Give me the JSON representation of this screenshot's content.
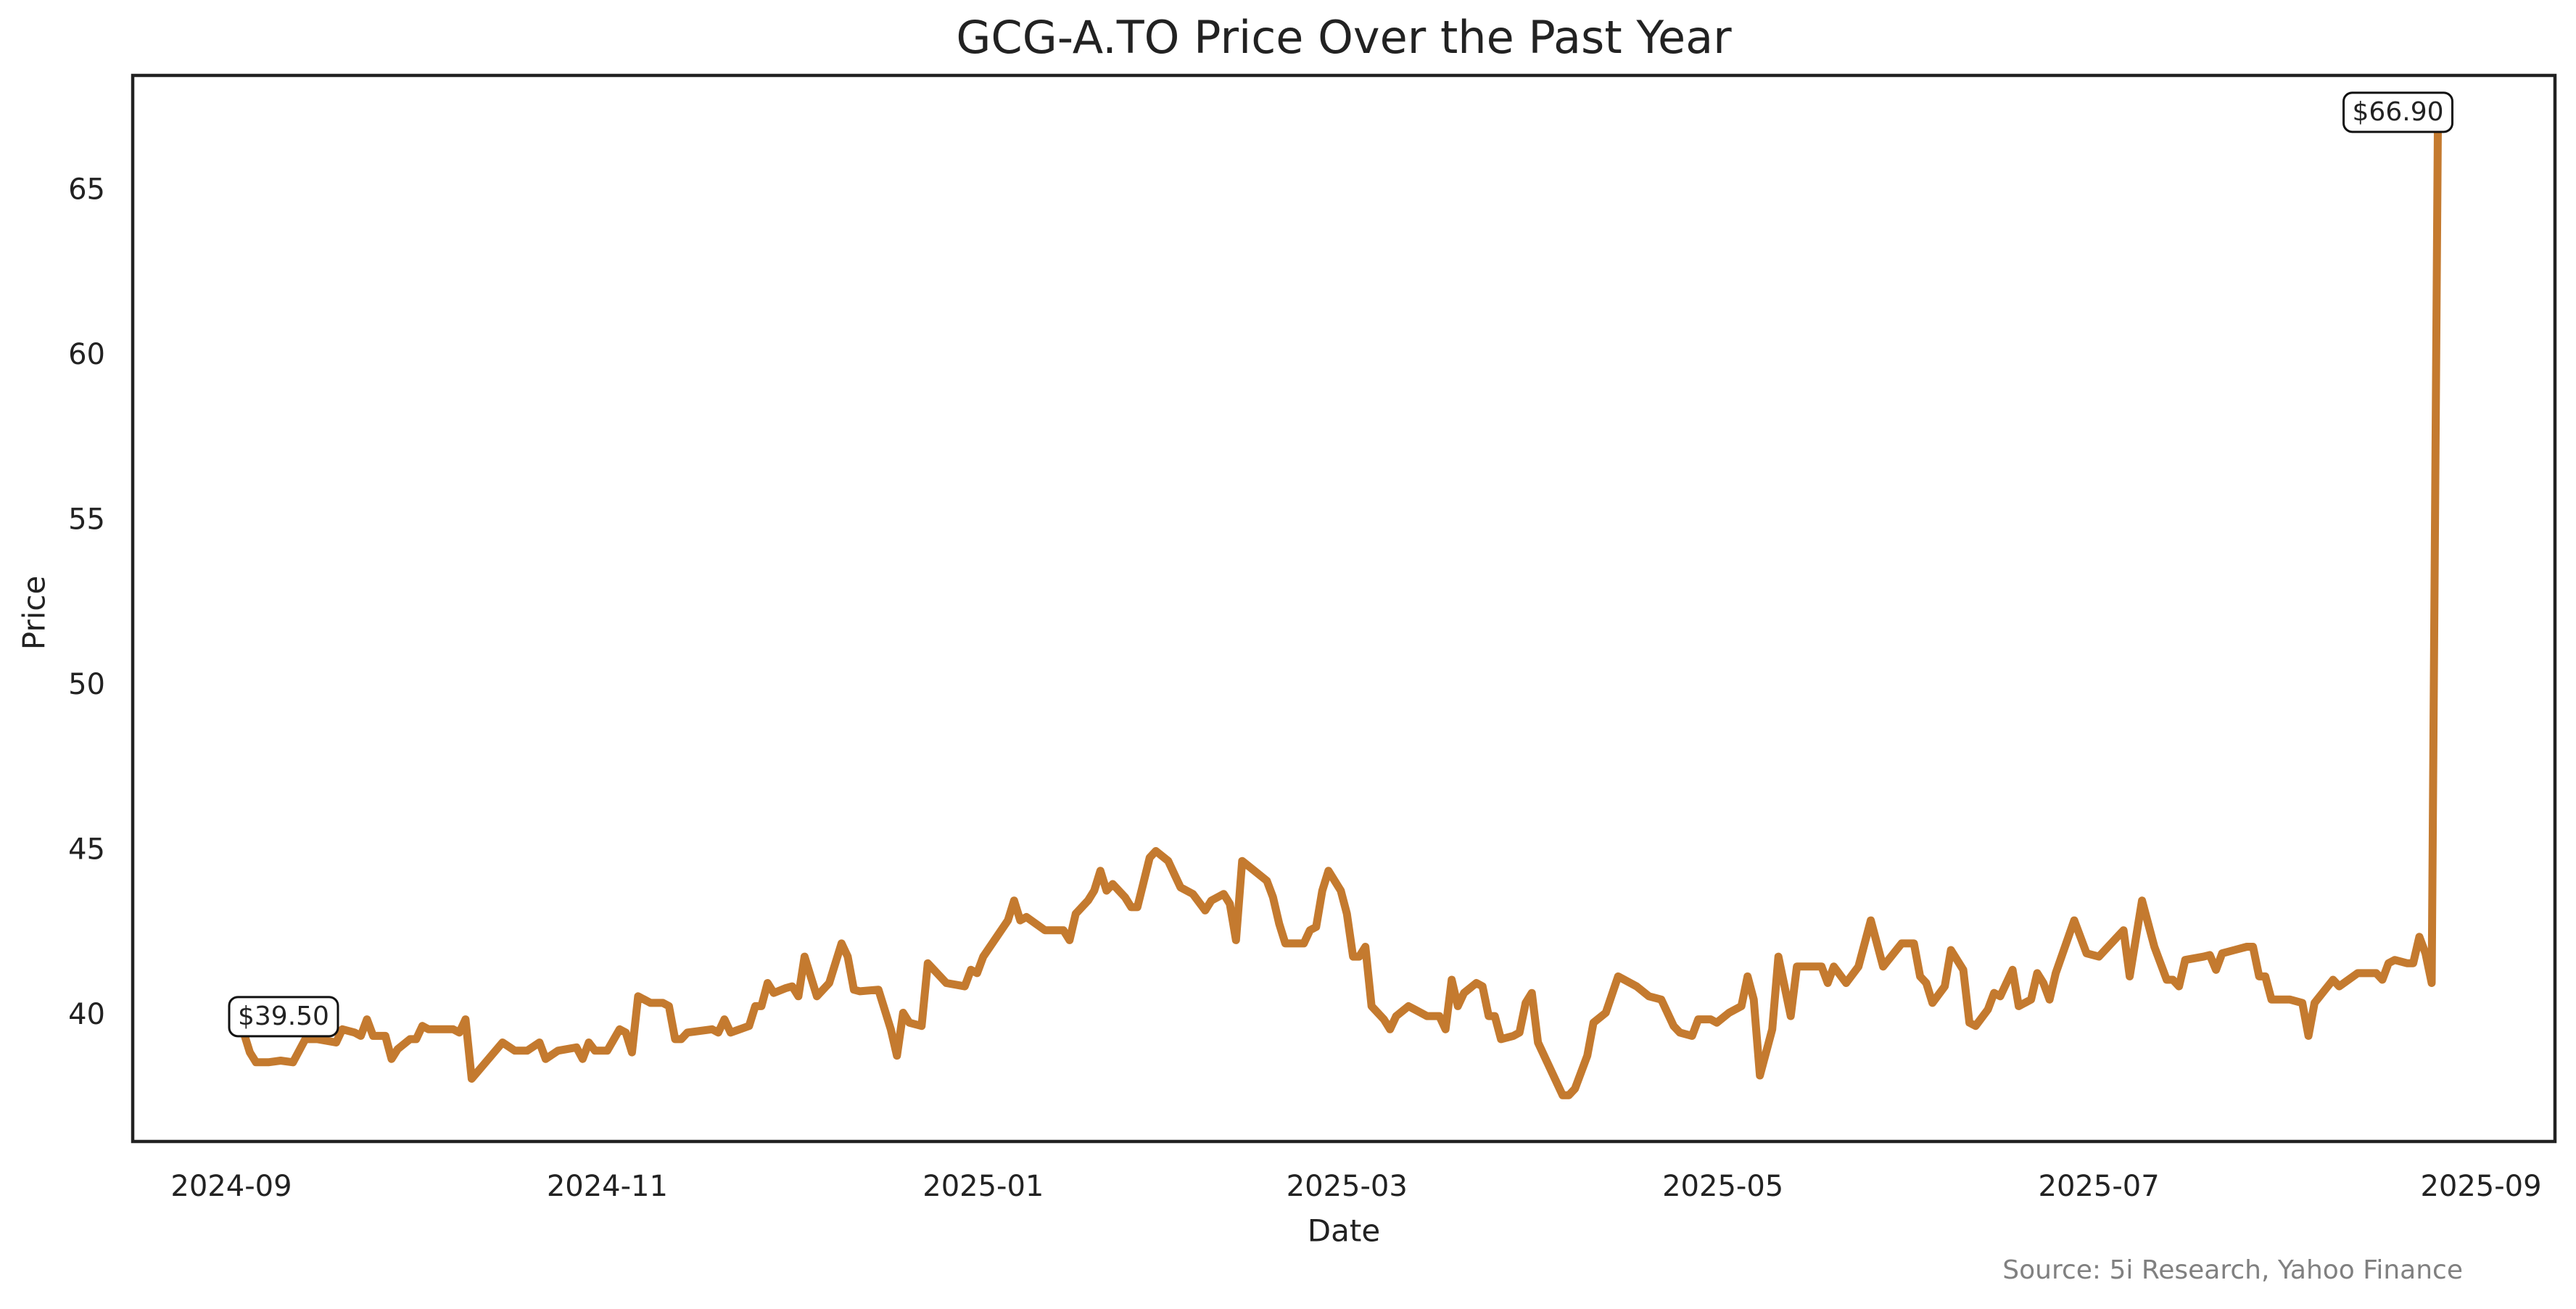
{
  "chart_data": {
    "type": "line",
    "title": "GCG-A.TO Price Over the Past Year",
    "x_label": "Date",
    "y_label": "Price",
    "source": "Source: 5i Research, Yahoo Finance",
    "start_label": "$39.50",
    "end_label": "$66.90",
    "xlim": [
      -16,
      377
    ],
    "xticks": [
      {
        "value": 0,
        "label": "2024-09"
      },
      {
        "value": 61,
        "label": "2024-11"
      },
      {
        "value": 122,
        "label": "2025-01"
      },
      {
        "value": 181,
        "label": "2025-03"
      },
      {
        "value": 242,
        "label": "2025-05"
      },
      {
        "value": 303,
        "label": "2025-07"
      },
      {
        "value": 365,
        "label": "2025-09"
      }
    ],
    "ylim": [
      36.2,
      68.5
    ],
    "yticks": [
      40,
      45,
      50,
      55,
      60,
      65
    ],
    "grid": false,
    "x": [
      2,
      3,
      4,
      6,
      8,
      10,
      12,
      14,
      17,
      18,
      20,
      21,
      22,
      23,
      25,
      26,
      27,
      29,
      30,
      31,
      32,
      36,
      37,
      38,
      39,
      44,
      46,
      48,
      50,
      51,
      53,
      56,
      57,
      58,
      59,
      61,
      63,
      64,
      65,
      66,
      68,
      70,
      71,
      72,
      73,
      74,
      78,
      79,
      80,
      81,
      84,
      85,
      86,
      87,
      88,
      90,
      91,
      92,
      93,
      95,
      97,
      99,
      100,
      101,
      102,
      105,
      107,
      108,
      109,
      110,
      112,
      113,
      115,
      116,
      119,
      120,
      121,
      122,
      126,
      127,
      128,
      129,
      132,
      135,
      136,
      137,
      139,
      140,
      141,
      142,
      143,
      145,
      146,
      147,
      149,
      150,
      152,
      153,
      154,
      156,
      158,
      159,
      161,
      162,
      163,
      164,
      166,
      168,
      169,
      170,
      171,
      174,
      175,
      176,
      177,
      178,
      180,
      181,
      182,
      183,
      184,
      185,
      187,
      188,
      189,
      191,
      192,
      194,
      196,
      197,
      198,
      199,
      200,
      202,
      203,
      204,
      205,
      206,
      208,
      209,
      210,
      211,
      212,
      214,
      216,
      217,
      218,
      220,
      221,
      223,
      225,
      228,
      230,
      232,
      234,
      235,
      237,
      238,
      240,
      241,
      243,
      245,
      246,
      247,
      248,
      250,
      251,
      253,
      254,
      257,
      258,
      259,
      260,
      262,
      264,
      266,
      268,
      271,
      273,
      274,
      275,
      276,
      278,
      279,
      281,
      282,
      283,
      285,
      286,
      287,
      289,
      290,
      292,
      293,
      294,
      295,
      296,
      299,
      301,
      303,
      306,
      307,
      308,
      310,
      312,
      314,
      315,
      316,
      317,
      320,
      321,
      322,
      323,
      325,
      327,
      328,
      329,
      330,
      331,
      334,
      336,
      337,
      338,
      341,
      342,
      345,
      346,
      348,
      349,
      350,
      351,
      353,
      354,
      355,
      356,
      357,
      358
    ],
    "series": [
      {
        "name": "GCG-A.TO",
        "color": "#c47a2f",
        "values": [
          39.5,
          38.9,
          38.6,
          38.6,
          38.65,
          38.6,
          39.3,
          39.3,
          39.2,
          39.6,
          39.5,
          39.4,
          39.9,
          39.4,
          39.4,
          38.7,
          39.0,
          39.3,
          39.3,
          39.7,
          39.6,
          39.6,
          39.5,
          39.9,
          38.1,
          39.2,
          38.95,
          38.95,
          39.2,
          38.7,
          38.95,
          39.05,
          38.7,
          39.2,
          38.95,
          38.95,
          39.6,
          39.5,
          38.9,
          40.6,
          40.4,
          40.4,
          40.3,
          39.3,
          39.3,
          39.5,
          39.6,
          39.5,
          39.9,
          39.5,
          39.7,
          40.3,
          40.3,
          41.0,
          40.7,
          40.85,
          40.9,
          40.6,
          41.8,
          40.6,
          41.0,
          42.2,
          41.8,
          40.8,
          40.75,
          40.8,
          39.6,
          38.8,
          40.1,
          39.8,
          39.7,
          41.6,
          41.2,
          41.0,
          40.9,
          41.4,
          41.3,
          41.8,
          42.9,
          43.5,
          42.9,
          43.0,
          42.6,
          42.6,
          42.3,
          43.1,
          43.5,
          43.8,
          44.4,
          43.8,
          44.0,
          43.6,
          43.3,
          43.3,
          44.8,
          45.0,
          44.7,
          44.3,
          43.9,
          43.7,
          43.2,
          43.5,
          43.7,
          43.4,
          42.3,
          44.7,
          44.4,
          44.1,
          43.6,
          42.8,
          42.2,
          42.2,
          42.6,
          42.7,
          43.8,
          44.4,
          43.8,
          43.1,
          41.8,
          41.8,
          42.1,
          40.3,
          39.9,
          39.6,
          40.0,
          40.3,
          40.2,
          40.0,
          40.0,
          39.6,
          41.1,
          40.3,
          40.7,
          41.0,
          40.9,
          40.0,
          40.0,
          39.3,
          39.4,
          39.5,
          40.4,
          40.7,
          39.2,
          38.4,
          37.6,
          37.6,
          37.8,
          38.8,
          39.8,
          40.1,
          41.2,
          40.9,
          40.6,
          40.5,
          39.7,
          39.5,
          39.4,
          39.9,
          39.9,
          39.8,
          40.1,
          40.3,
          41.2,
          40.5,
          38.2,
          39.6,
          41.8,
          40.0,
          41.5,
          41.5,
          41.5,
          41.0,
          41.5,
          41.0,
          41.5,
          42.9,
          41.5,
          42.2,
          42.2,
          41.2,
          41.0,
          40.4,
          40.9,
          42.0,
          41.4,
          39.8,
          39.7,
          40.2,
          40.7,
          40.6,
          41.4,
          40.3,
          40.5,
          41.3,
          41.0,
          40.5,
          41.3,
          42.9,
          41.9,
          41.8,
          42.4,
          42.6,
          41.2,
          43.5,
          42.1,
          41.1,
          41.1,
          40.9,
          41.7,
          41.8,
          41.85,
          41.4,
          41.9,
          42.0,
          42.1,
          42.1,
          41.2,
          41.2,
          40.5,
          40.5,
          40.4,
          39.4,
          40.4,
          41.1,
          40.9,
          41.3,
          41.3,
          41.3,
          41.1,
          41.6,
          41.7,
          41.6,
          41.6,
          42.4,
          41.9,
          41.0,
          66.9
        ]
      }
    ]
  }
}
